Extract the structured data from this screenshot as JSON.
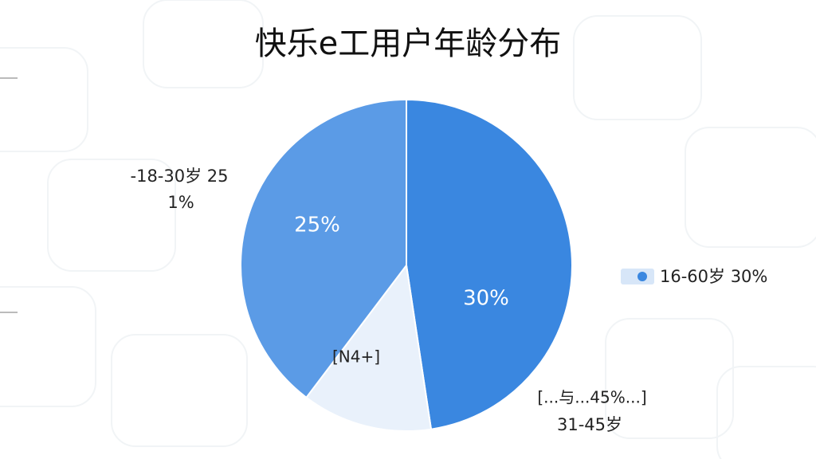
{
  "chart_data": {
    "type": "pie",
    "title": "快乐e工用户年龄分布",
    "categories": [
      "16-60岁 30%",
      "31-45岁",
      "-18-30岁 25"
    ],
    "values": [
      30,
      8,
      25
    ],
    "value_labels": [
      "30%",
      null,
      "25%"
    ],
    "colors": [
      "#3a87e0",
      "#e9f1fb",
      "#5b9be6"
    ],
    "annotations": [
      "1%",
      "[N4+]",
      "[...与...45%...]"
    ],
    "legend": "right"
  }
}
